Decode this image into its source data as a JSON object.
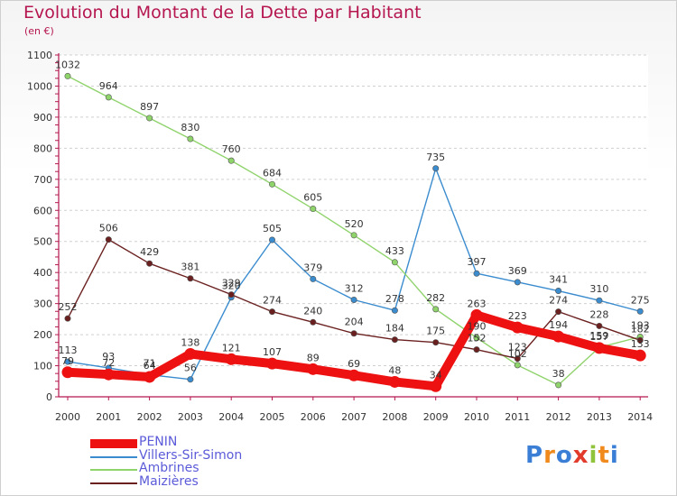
{
  "header": {
    "title": "Evolution du Montant de la Dette par Habitant",
    "subtitle": "(en €)"
  },
  "logo": {
    "text": "Proxiti"
  },
  "chart_data": {
    "type": "line",
    "title": "Evolution du Montant de la Dette par Habitant",
    "subtitle": "(en €)",
    "xlabel": "",
    "ylabel": "",
    "x": [
      "2000",
      "2001",
      "2002",
      "2003",
      "2004",
      "2005",
      "2006",
      "2007",
      "2008",
      "2009",
      "2010",
      "2011",
      "2012",
      "2013",
      "2014"
    ],
    "ylim": [
      0,
      1100
    ],
    "yticks": [
      0,
      100,
      200,
      300,
      400,
      500,
      600,
      700,
      800,
      900,
      1000,
      1100
    ],
    "grid": "horizontal dashed",
    "legend_position": "bottom-left",
    "series": [
      {
        "name": "PENIN",
        "color": "#ee1111",
        "values": [
          79,
          72,
          64,
          138,
          121,
          107,
          89,
          69,
          48,
          34,
          263,
          223,
          194,
          157,
          133
        ]
      },
      {
        "name": "Villers-Sir-Simon",
        "color": "#3a8ccf",
        "values": [
          113,
          93,
          71,
          56,
          320,
          505,
          379,
          312,
          278,
          735,
          397,
          369,
          341,
          310,
          275
        ]
      },
      {
        "name": "Ambrines",
        "color": "#8fd36b",
        "values": [
          1032,
          964,
          897,
          830,
          760,
          684,
          605,
          520,
          433,
          282,
          190,
          102,
          38,
          159,
          193
        ]
      },
      {
        "name": "Maizières",
        "color": "#6b2020",
        "values": [
          252,
          506,
          429,
          381,
          329,
          274,
          240,
          204,
          184,
          175,
          152,
          123,
          274,
          228,
          182
        ]
      }
    ]
  }
}
